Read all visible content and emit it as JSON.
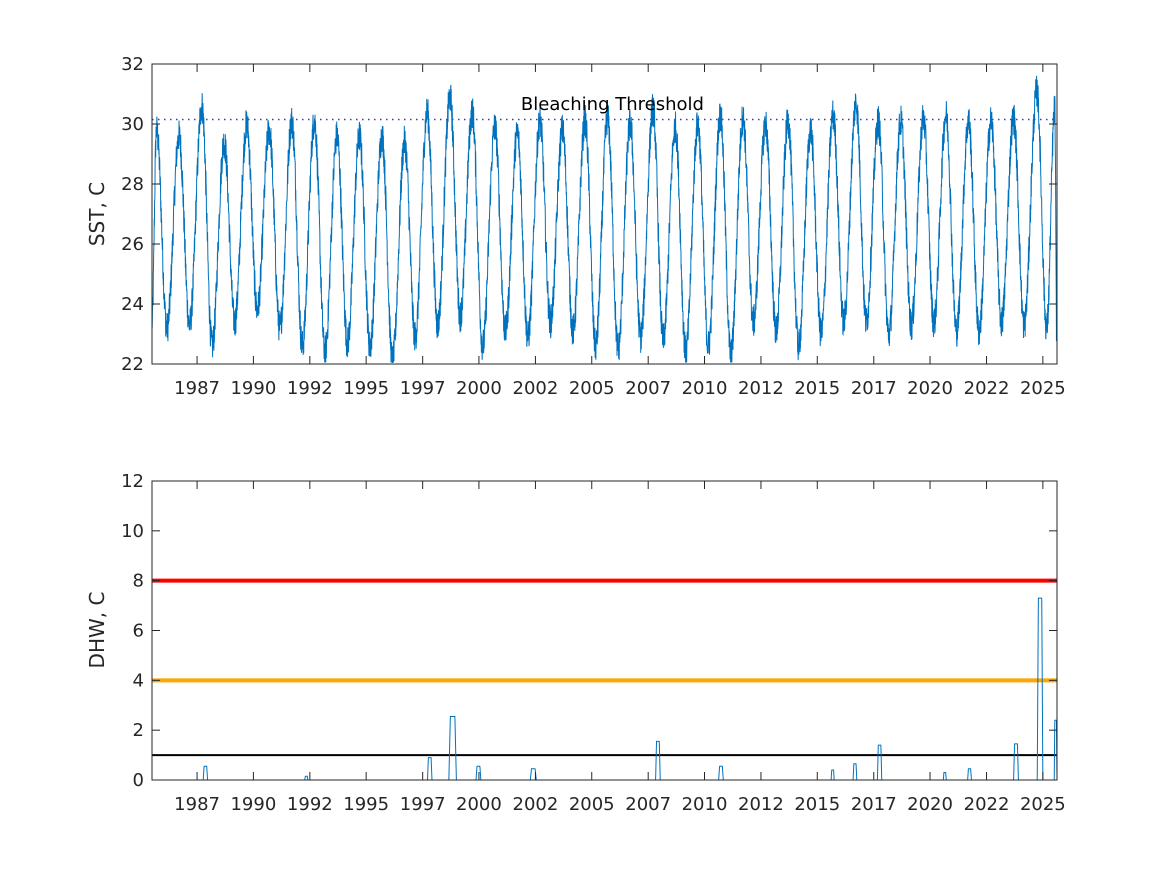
{
  "chart_data": [
    {
      "type": "line",
      "ylabel": "SST, C",
      "xlabel": "",
      "title": "",
      "xlim": [
        "1985-01-01",
        "2025-02-15"
      ],
      "ylim": [
        22,
        32
      ],
      "yticks": [
        22,
        24,
        26,
        28,
        30,
        32
      ],
      "xtick_labels": [
        "1987",
        "1990",
        "1992",
        "1995",
        "1997",
        "2000",
        "2002",
        "2005",
        "2007",
        "2010",
        "2012",
        "2015",
        "2017",
        "2020",
        "2022",
        "2025"
      ],
      "xtick_dates": [
        "1987-01-01",
        "1989-07-01",
        "1992-01-01",
        "1994-07-01",
        "1997-01-01",
        "1999-07-01",
        "2002-01-01",
        "2004-07-01",
        "2007-01-01",
        "2009-07-01",
        "2012-01-01",
        "2014-07-01",
        "2017-01-01",
        "2019-07-01",
        "2022-01-01",
        "2024-07-01"
      ],
      "grid": false,
      "annotation": {
        "text": "Bleaching Threshold",
        "x": "2005-06-01",
        "y": 30.6
      },
      "reference_lines": [
        {
          "y": 30.15,
          "style": "dotted",
          "color": "#3a3aa0"
        }
      ],
      "series": [
        {
          "color": "#0072BD",
          "seasonal_points": [
            [
              "1985-01-01",
              23.4
            ],
            [
              "1985-03-15",
              29.8
            ],
            [
              "1985-09-01",
              23.2
            ],
            [
              "1986-03-15",
              29.6
            ],
            [
              "1986-09-01",
              23.3
            ],
            [
              "1987-03-20",
              30.6
            ],
            [
              "1987-09-01",
              22.6
            ],
            [
              "1988-03-15",
              29.4
            ],
            [
              "1988-09-01",
              23.4
            ],
            [
              "1989-03-15",
              30.0
            ],
            [
              "1989-09-01",
              23.8
            ],
            [
              "1990-03-15",
              29.8
            ],
            [
              "1990-09-01",
              23.2
            ],
            [
              "1991-03-15",
              30.1
            ],
            [
              "1991-09-01",
              22.6
            ],
            [
              "1992-03-15",
              30.1
            ],
            [
              "1992-09-01",
              22.4
            ],
            [
              "1993-03-15",
              29.6
            ],
            [
              "1993-09-01",
              22.7
            ],
            [
              "1994-03-15",
              29.6
            ],
            [
              "1994-09-01",
              22.6
            ],
            [
              "1995-03-15",
              29.6
            ],
            [
              "1995-09-01",
              22.1
            ],
            [
              "1996-03-15",
              29.4
            ],
            [
              "1996-09-01",
              22.9
            ],
            [
              "1997-03-15",
              30.4
            ],
            [
              "1997-09-01",
              23.3
            ],
            [
              "1998-03-20",
              30.9
            ],
            [
              "1998-09-01",
              23.6
            ],
            [
              "1999-03-15",
              30.4
            ],
            [
              "1999-09-01",
              22.6
            ],
            [
              "2000-03-15",
              29.9
            ],
            [
              "2000-09-01",
              23.1
            ],
            [
              "2001-03-15",
              29.7
            ],
            [
              "2001-09-01",
              22.9
            ],
            [
              "2002-03-15",
              30.1
            ],
            [
              "2002-09-01",
              23.4
            ],
            [
              "2003-03-15",
              29.8
            ],
            [
              "2003-09-01",
              23.1
            ],
            [
              "2004-03-15",
              30.1
            ],
            [
              "2004-09-01",
              22.6
            ],
            [
              "2005-03-15",
              30.2
            ],
            [
              "2005-09-01",
              22.5
            ],
            [
              "2006-03-15",
              30.0
            ],
            [
              "2006-09-01",
              22.9
            ],
            [
              "2007-03-20",
              30.5
            ],
            [
              "2007-09-01",
              22.8
            ],
            [
              "2008-03-15",
              29.9
            ],
            [
              "2008-09-01",
              22.4
            ],
            [
              "2009-03-15",
              30.0
            ],
            [
              "2009-09-01",
              22.6
            ],
            [
              "2010-03-15",
              30.3
            ],
            [
              "2010-09-01",
              22.3
            ],
            [
              "2011-03-15",
              30.2
            ],
            [
              "2011-09-01",
              23.4
            ],
            [
              "2012-03-15",
              30.0
            ],
            [
              "2012-09-01",
              23.1
            ],
            [
              "2013-03-15",
              30.1
            ],
            [
              "2013-09-01",
              22.6
            ],
            [
              "2014-03-15",
              29.8
            ],
            [
              "2014-09-01",
              23.0
            ],
            [
              "2015-03-15",
              30.3
            ],
            [
              "2015-09-01",
              23.4
            ],
            [
              "2016-03-20",
              30.7
            ],
            [
              "2016-09-01",
              23.4
            ],
            [
              "2017-03-15",
              30.1
            ],
            [
              "2017-09-01",
              23.0
            ],
            [
              "2018-03-15",
              30.1
            ],
            [
              "2018-09-01",
              23.3
            ],
            [
              "2019-03-15",
              30.2
            ],
            [
              "2019-09-01",
              23.4
            ],
            [
              "2020-03-15",
              30.3
            ],
            [
              "2020-09-01",
              23.1
            ],
            [
              "2021-03-15",
              30.1
            ],
            [
              "2021-09-01",
              23.1
            ],
            [
              "2022-03-15",
              30.1
            ],
            [
              "2022-09-01",
              23.4
            ],
            [
              "2023-03-15",
              30.2
            ],
            [
              "2023-09-01",
              23.3
            ],
            [
              "2024-03-25",
              31.1
            ],
            [
              "2024-09-01",
              23.2
            ],
            [
              "2025-01-10",
              30.5
            ],
            [
              "2025-02-10",
              23.0
            ]
          ]
        }
      ]
    },
    {
      "type": "line",
      "ylabel": "DHW, C",
      "xlabel": "",
      "title": "",
      "xlim": [
        "1985-01-01",
        "2025-02-15"
      ],
      "ylim": [
        0,
        12
      ],
      "yticks": [
        0,
        2,
        4,
        6,
        8,
        10,
        12
      ],
      "xtick_labels": [
        "1987",
        "1990",
        "1992",
        "1995",
        "1997",
        "2000",
        "2002",
        "2005",
        "2007",
        "2010",
        "2012",
        "2015",
        "2017",
        "2020",
        "2022",
        "2025"
      ],
      "xtick_dates": [
        "1987-01-01",
        "1989-07-01",
        "1992-01-01",
        "1994-07-01",
        "1997-01-01",
        "1999-07-01",
        "2002-01-01",
        "2004-07-01",
        "2007-01-01",
        "2009-07-01",
        "2012-01-01",
        "2014-07-01",
        "2017-01-01",
        "2019-07-01",
        "2022-01-01",
        "2024-07-01"
      ],
      "grid": false,
      "reference_lines": [
        {
          "y": 1,
          "color": "#000000"
        },
        {
          "y": 4,
          "color": "#FFA500"
        },
        {
          "y": 8,
          "color": "#FF0000"
        }
      ],
      "series": [
        {
          "color": "#0072BD",
          "events": [
            {
              "start": "1987-04-10",
              "end": "1987-06-20",
              "peak": 0.55
            },
            {
              "start": "1991-10-10",
              "end": "1991-12-01",
              "peak": 0.15
            },
            {
              "start": "1997-03-20",
              "end": "1997-06-01",
              "peak": 0.9
            },
            {
              "start": "1998-03-01",
              "end": "1998-07-01",
              "peak": 2.55
            },
            {
              "start": "1999-05-15",
              "end": "1999-08-01",
              "peak": 0.55
            },
            {
              "start": "2001-10-10",
              "end": "2002-01-15",
              "peak": 0.45
            },
            {
              "start": "2007-05-01",
              "end": "2007-07-15",
              "peak": 1.55
            },
            {
              "start": "2010-02-15",
              "end": "2010-05-01",
              "peak": 0.55
            },
            {
              "start": "2015-02-10",
              "end": "2015-04-01",
              "peak": 0.4
            },
            {
              "start": "2016-02-01",
              "end": "2016-04-01",
              "peak": 0.65
            },
            {
              "start": "2017-03-01",
              "end": "2017-05-10",
              "peak": 1.4
            },
            {
              "start": "2020-02-01",
              "end": "2020-03-20",
              "peak": 0.3
            },
            {
              "start": "2021-03-01",
              "end": "2021-05-01",
              "peak": 0.45
            },
            {
              "start": "2023-03-15",
              "end": "2023-06-01",
              "peak": 1.45
            },
            {
              "start": "2024-04-01",
              "end": "2024-07-01",
              "peak": 7.3
            },
            {
              "start": "2025-01-01",
              "end": "2025-02-15",
              "peak": 2.4
            }
          ]
        }
      ]
    }
  ]
}
